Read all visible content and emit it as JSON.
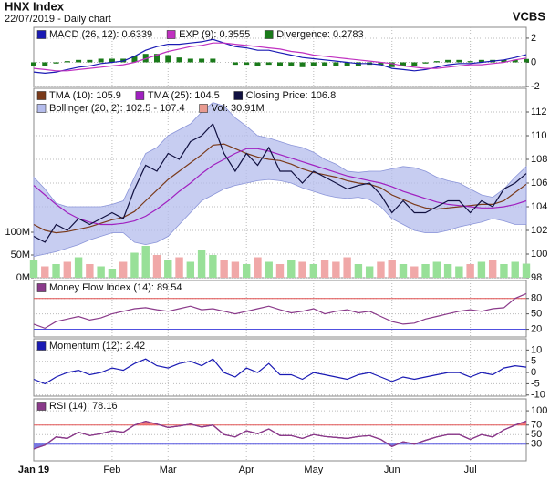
{
  "header": {
    "title": "HNX Index",
    "subtitle": "22/07/2019 - Daily chart",
    "source": "VCBS"
  },
  "chart_data": [
    {
      "type": "line",
      "ylim": [
        -2,
        2.9
      ],
      "yticks": [
        -2,
        0,
        2
      ],
      "grid": true,
      "series": [
        {
          "name": "MACD (26, 12): 0.6339",
          "color": "#1a1ab4",
          "kind": "line",
          "values": [
            -0.8,
            -0.9,
            -0.8,
            -0.6,
            -0.4,
            -0.3,
            -0.1,
            0.0,
            0.1,
            0.5,
            1.0,
            1.3,
            1.5,
            1.5,
            1.6,
            1.7,
            1.9,
            1.6,
            1.3,
            1.2,
            1.0,
            1.0,
            0.8,
            0.6,
            0.4,
            0.3,
            0.2,
            0.1,
            0.0,
            -0.1,
            -0.1,
            -0.2,
            -0.5,
            -0.6,
            -0.7,
            -0.6,
            -0.4,
            -0.2,
            -0.1,
            -0.1,
            0.0,
            0.1,
            0.2,
            0.4,
            0.6339
          ]
        },
        {
          "name": "EXP (9): 0.3555",
          "color": "#c030c0",
          "kind": "line",
          "values": [
            -0.5,
            -0.6,
            -0.7,
            -0.7,
            -0.6,
            -0.5,
            -0.4,
            -0.3,
            -0.2,
            0.0,
            0.3,
            0.6,
            0.9,
            1.1,
            1.3,
            1.4,
            1.6,
            1.6,
            1.5,
            1.4,
            1.3,
            1.2,
            1.1,
            0.9,
            0.8,
            0.6,
            0.5,
            0.4,
            0.3,
            0.2,
            0.1,
            0.0,
            -0.1,
            -0.3,
            -0.4,
            -0.5,
            -0.5,
            -0.4,
            -0.3,
            -0.2,
            -0.2,
            -0.1,
            0.0,
            0.2,
            0.3555
          ]
        },
        {
          "name": "Divergence: 0.2783",
          "color": "#1a7a1a",
          "kind": "bar",
          "values": [
            -0.3,
            -0.3,
            -0.1,
            0.1,
            0.2,
            0.2,
            0.3,
            0.3,
            0.3,
            0.5,
            0.7,
            0.7,
            0.6,
            0.4,
            0.3,
            0.3,
            0.3,
            0.0,
            -0.2,
            -0.2,
            -0.3,
            -0.2,
            -0.3,
            -0.3,
            -0.4,
            -0.3,
            -0.3,
            -0.3,
            -0.3,
            -0.3,
            -0.2,
            -0.2,
            -0.4,
            -0.3,
            -0.3,
            -0.1,
            0.1,
            0.2,
            0.2,
            0.1,
            0.2,
            0.2,
            0.2,
            0.2,
            0.2783
          ]
        }
      ]
    },
    {
      "type": "line",
      "ylim": [
        98,
        114
      ],
      "yticks": [
        98,
        100,
        102,
        104,
        106,
        108,
        110,
        112
      ],
      "grid": true,
      "y2lim": [
        0,
        416
      ],
      "y2ticks": [
        {
          "value": 0,
          "label": "0M"
        },
        {
          "value": 50,
          "label": "50M"
        },
        {
          "value": 100,
          "label": "100M"
        }
      ],
      "series": [
        {
          "name": "TMA (10): 105.9",
          "color": "#7a3a1a",
          "kind": "line",
          "values": [
            102.5,
            102.0,
            101.8,
            101.9,
            102.1,
            102.3,
            102.6,
            102.9,
            103.1,
            103.6,
            104.5,
            105.4,
            106.3,
            107.0,
            107.7,
            108.4,
            109.2,
            109.3,
            108.9,
            108.5,
            108.2,
            108.0,
            107.9,
            107.6,
            107.2,
            106.9,
            106.7,
            106.5,
            106.2,
            106.0,
            105.9,
            105.6,
            105.0,
            104.6,
            104.2,
            103.9,
            103.8,
            103.9,
            104.0,
            104.1,
            104.2,
            104.2,
            104.5,
            105.2,
            105.9
          ]
        },
        {
          "name": "TMA (25): 104.5",
          "color": "#a020c0",
          "kind": "line",
          "values": [
            105.8,
            105.0,
            104.2,
            103.5,
            103.0,
            102.7,
            102.5,
            102.5,
            102.6,
            102.8,
            103.2,
            103.8,
            104.5,
            105.3,
            106.0,
            106.8,
            107.5,
            108.0,
            108.5,
            108.9,
            108.9,
            108.7,
            108.4,
            108.1,
            107.8,
            107.5,
            107.2,
            106.9,
            106.6,
            106.4,
            106.2,
            106.0,
            105.7,
            105.3,
            105.0,
            104.7,
            104.4,
            104.2,
            104.1,
            104.0,
            103.9,
            103.9,
            104.0,
            104.2,
            104.5
          ]
        },
        {
          "name": "Closing Price: 106.8",
          "color": "#101040",
          "kind": "close",
          "values": [
            101.5,
            101.0,
            102.5,
            102.0,
            103.0,
            102.5,
            103.0,
            103.5,
            103.0,
            105.5,
            107.5,
            107.0,
            108.5,
            108.0,
            109.5,
            110.0,
            111.0,
            108.5,
            107.0,
            108.5,
            107.5,
            109.0,
            107.0,
            107.0,
            106.0,
            107.0,
            106.5,
            106.0,
            105.5,
            105.8,
            106.0,
            105.0,
            103.5,
            104.5,
            103.5,
            103.5,
            104.0,
            104.5,
            104.5,
            103.5,
            104.5,
            104.0,
            105.5,
            106.0,
            106.8
          ]
        },
        {
          "name": "Bollinger (20, 2): 102.5 - 107.4",
          "color": "#b4bcec",
          "kind": "band",
          "upper": [
            106.5,
            105.5,
            104.3,
            104.0,
            104.0,
            104.0,
            104.0,
            104.2,
            104.5,
            106.5,
            108.5,
            109.0,
            110.0,
            110.5,
            111.0,
            112.0,
            112.8,
            112.5,
            111.5,
            110.8,
            110.0,
            109.8,
            109.5,
            109.2,
            109.0,
            108.6,
            108.0,
            107.6,
            107.0,
            106.9,
            107.0,
            107.0,
            107.2,
            107.4,
            107.3,
            107.0,
            106.5,
            106.2,
            106.0,
            105.5,
            105.0,
            104.8,
            105.5,
            106.5,
            107.4
          ],
          "lower": [
            99.8,
            100.0,
            100.2,
            100.5,
            100.8,
            101.2,
            101.5,
            101.8,
            101.8,
            101.0,
            100.8,
            101.0,
            101.5,
            102.5,
            103.5,
            104.5,
            105.0,
            105.5,
            105.8,
            106.0,
            106.2,
            106.3,
            106.2,
            106.0,
            105.6,
            105.3,
            105.0,
            104.8,
            104.7,
            104.8,
            104.6,
            104.0,
            103.0,
            102.5,
            102.0,
            101.8,
            101.8,
            102.0,
            102.3,
            102.5,
            102.7,
            103.0,
            102.8,
            102.5,
            102.5
          ]
        },
        {
          "name": "Vol: 30.91M",
          "color": "#e89a90",
          "kind": "bar",
          "axis": "y2",
          "up_color": "#98e098",
          "down_color": "#f0a8a8",
          "values": [
            40,
            25,
            30,
            35,
            45,
            30,
            25,
            20,
            35,
            55,
            70,
            50,
            40,
            45,
            35,
            60,
            50,
            40,
            35,
            30,
            45,
            35,
            30,
            40,
            35,
            30,
            40,
            35,
            45,
            30,
            25,
            35,
            40,
            30,
            25,
            30,
            35,
            30,
            25,
            30,
            35,
            40,
            30,
            35,
            30.91
          ]
        }
      ]
    },
    {
      "type": "line",
      "ylim": [
        5,
        115
      ],
      "yticks": [
        20,
        50,
        80
      ],
      "grid": true,
      "hlines": [
        {
          "value": 80,
          "color": "#e05050"
        },
        {
          "value": 20,
          "color": "#5050e0"
        }
      ],
      "series": [
        {
          "name": "Money Flow Index (14): 89.54",
          "color": "#8a3a8a",
          "kind": "line",
          "values": [
            30,
            22,
            35,
            40,
            45,
            38,
            42,
            50,
            55,
            60,
            62,
            58,
            55,
            60,
            65,
            58,
            60,
            55,
            50,
            55,
            60,
            65,
            58,
            52,
            55,
            60,
            50,
            55,
            58,
            52,
            55,
            45,
            35,
            30,
            32,
            40,
            45,
            50,
            55,
            58,
            55,
            60,
            62,
            80,
            89.54
          ]
        }
      ]
    },
    {
      "type": "line",
      "ylim": [
        -10.5,
        15
      ],
      "yticks": [
        -10,
        -5,
        0,
        5,
        10
      ],
      "grid": true,
      "series": [
        {
          "name": "Momentum (12): 2.42",
          "color": "#1a1ab4",
          "kind": "line",
          "values": [
            -3,
            -5,
            -2,
            0,
            1,
            -1,
            0,
            2,
            1,
            4,
            6,
            3,
            2,
            4,
            5,
            3,
            6,
            0,
            -2,
            2,
            0,
            4,
            -1,
            -1,
            -3,
            0,
            -1,
            -2,
            -3,
            -1,
            0,
            -2,
            -4,
            -2,
            -3,
            -2,
            -1,
            0,
            0,
            -2,
            0,
            -1,
            2,
            3,
            2.42
          ]
        }
      ]
    },
    {
      "type": "line",
      "ylim": [
        -5,
        125
      ],
      "yticks": [
        30,
        50,
        70,
        100
      ],
      "grid": true,
      "hlines": [
        {
          "value": 70,
          "color": "#e05050",
          "fill": "above",
          "fill_color": "#f07878"
        },
        {
          "value": 30,
          "color": "#5050e0",
          "fill": "below",
          "fill_color": "#7878e0"
        }
      ],
      "categories": [
        "Jan 19",
        null,
        null,
        null,
        null,
        null,
        null,
        "Feb",
        null,
        null,
        null,
        null,
        "Mar",
        null,
        null,
        null,
        null,
        null,
        null,
        "Apr",
        null,
        null,
        null,
        null,
        null,
        "May",
        null,
        null,
        null,
        null,
        null,
        null,
        "Jun",
        null,
        null,
        null,
        null,
        null,
        null,
        "Jul",
        null,
        null,
        null,
        null,
        null
      ],
      "series": [
        {
          "name": "RSI (14): 78.16",
          "color": "#8a3a8a",
          "kind": "line",
          "values": [
            20,
            28,
            45,
            42,
            55,
            48,
            52,
            58,
            55,
            70,
            78,
            72,
            65,
            68,
            72,
            66,
            70,
            50,
            45,
            58,
            52,
            62,
            48,
            48,
            42,
            50,
            46,
            44,
            42,
            46,
            48,
            40,
            25,
            35,
            30,
            38,
            45,
            50,
            50,
            40,
            50,
            45,
            60,
            70,
            78.16
          ]
        }
      ]
    }
  ]
}
